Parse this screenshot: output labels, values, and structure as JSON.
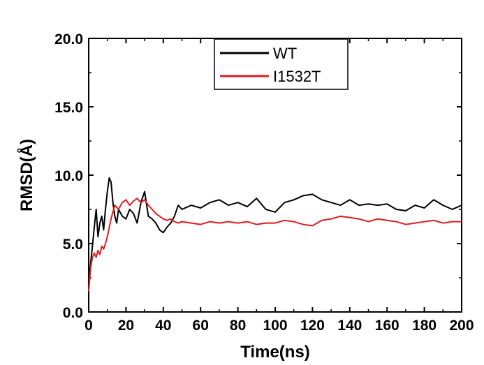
{
  "chart_data": {
    "type": "line",
    "xlabel": "Time(ns)",
    "ylabel": "RMSD(Å)",
    "xlim": [
      0,
      200
    ],
    "ylim": [
      0,
      20
    ],
    "x_ticks": [
      0,
      20,
      40,
      60,
      80,
      100,
      120,
      140,
      160,
      180,
      200
    ],
    "x_tick_labels": [
      "0",
      "20",
      "40",
      "60",
      "80",
      "100",
      "120",
      "140",
      "160",
      "180",
      "200"
    ],
    "y_ticks": [
      0,
      5,
      10,
      15,
      20
    ],
    "y_tick_labels": [
      "0.0",
      "5.0",
      "10.0",
      "15.0",
      "20.0"
    ],
    "grid": false,
    "legend": {
      "position": "top-center"
    },
    "series": [
      {
        "name": "WT",
        "color": "#000000",
        "x": [
          0,
          1,
          2,
          3,
          4,
          5,
          6,
          7,
          8,
          9,
          10,
          11,
          12,
          13,
          14,
          15,
          16,
          18,
          20,
          22,
          24,
          26,
          28,
          30,
          32,
          34,
          36,
          38,
          40,
          42,
          44,
          46,
          48,
          50,
          55,
          60,
          65,
          70,
          75,
          80,
          85,
          90,
          95,
          100,
          105,
          110,
          115,
          120,
          125,
          130,
          135,
          140,
          145,
          150,
          155,
          160,
          165,
          170,
          175,
          180,
          185,
          190,
          195,
          200
        ],
        "y": [
          2.2,
          3.5,
          4.8,
          6.2,
          7.5,
          5.5,
          6.5,
          7.0,
          6.0,
          7.5,
          8.8,
          9.8,
          9.5,
          8.0,
          7.0,
          6.5,
          7.5,
          7.0,
          6.8,
          7.5,
          7.2,
          6.5,
          8.0,
          8.8,
          7.0,
          6.8,
          6.5,
          6.0,
          5.8,
          6.2,
          6.5,
          7.0,
          7.8,
          7.5,
          7.8,
          7.6,
          8.0,
          8.2,
          7.8,
          8.0,
          7.7,
          8.3,
          7.5,
          7.3,
          8.0,
          8.2,
          8.5,
          8.6,
          8.2,
          8.0,
          7.8,
          8.2,
          7.8,
          7.9,
          7.8,
          7.9,
          7.5,
          7.4,
          7.8,
          7.6,
          8.2,
          7.8,
          7.5,
          7.8
        ]
      },
      {
        "name": "I1532T",
        "color": "#e31a1c",
        "x": [
          0,
          1,
          2,
          3,
          4,
          5,
          6,
          7,
          8,
          9,
          10,
          12,
          14,
          16,
          18,
          20,
          22,
          24,
          26,
          28,
          30,
          32,
          34,
          36,
          38,
          40,
          42,
          44,
          46,
          48,
          50,
          55,
          60,
          65,
          70,
          75,
          80,
          85,
          90,
          95,
          100,
          105,
          110,
          115,
          120,
          125,
          130,
          135,
          140,
          145,
          150,
          155,
          160,
          165,
          170,
          175,
          180,
          185,
          190,
          195,
          200
        ],
        "y": [
          1.5,
          3.2,
          4.0,
          4.3,
          4.0,
          4.5,
          4.2,
          4.8,
          4.6,
          5.0,
          5.5,
          6.8,
          7.8,
          7.5,
          8.0,
          8.2,
          7.8,
          8.1,
          8.3,
          8.0,
          8.2,
          7.8,
          7.5,
          7.2,
          7.0,
          6.8,
          6.7,
          6.8,
          6.6,
          6.5,
          6.6,
          6.5,
          6.4,
          6.6,
          6.5,
          6.6,
          6.5,
          6.6,
          6.4,
          6.5,
          6.5,
          6.7,
          6.6,
          6.4,
          6.3,
          6.7,
          6.8,
          7.0,
          6.9,
          6.8,
          6.6,
          6.8,
          6.7,
          6.6,
          6.4,
          6.5,
          6.6,
          6.7,
          6.5,
          6.6,
          6.6
        ]
      }
    ]
  }
}
